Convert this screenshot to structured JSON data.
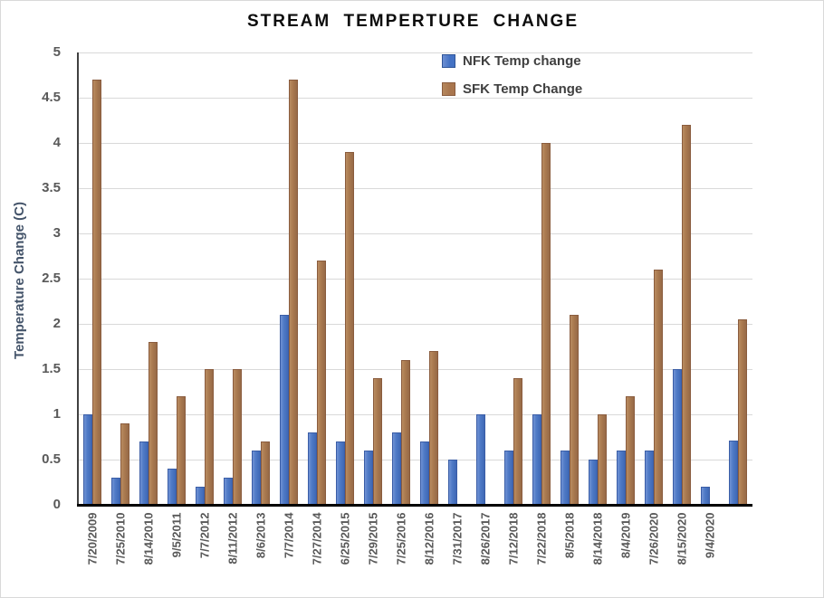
{
  "chart_data": {
    "type": "bar",
    "title": "STREAM TEMPERTURE CHANGE",
    "xlabel": "",
    "ylabel": "Temperature Change  (C)",
    "ylim": [
      0,
      5
    ],
    "grid": true,
    "legend_position": "inside-top-right",
    "yticks": [
      "0",
      "0.5",
      "1",
      "1.5",
      "2",
      "2.5",
      "3",
      "3.5",
      "4",
      "4.5",
      "5"
    ],
    "categories": [
      "7/20/2009",
      "7/25/2010",
      "8/14/2010",
      "9/5/2011",
      "7/7/2012",
      "8/11/2012",
      "8/6/2013",
      "7/7/2014",
      "7/27/2014",
      "6/25/2015",
      "7/29/2015",
      "7/25/2016",
      "8/12/2016",
      "7/31/2017",
      "8/26/2017",
      "7/12/2018",
      "7/22/2018",
      "8/5/2018",
      "8/14/2018",
      "8/4/2019",
      "7/26/2020",
      "8/15/2020",
      "9/4/2020",
      ""
    ],
    "series": [
      {
        "name": "NFK Temp change",
        "color": "#4472c4",
        "values": [
          1.0,
          0.3,
          0.7,
          0.4,
          0.2,
          0.3,
          0.6,
          2.1,
          0.8,
          0.7,
          0.6,
          0.8,
          0.7,
          0.5,
          1.0,
          0.6,
          1.0,
          0.6,
          0.5,
          0.6,
          0.6,
          1.5,
          0.2,
          0.71
        ]
      },
      {
        "name": "SFK Temp Change",
        "color": "#a9764e",
        "values": [
          4.7,
          0.9,
          1.8,
          1.2,
          1.5,
          1.5,
          0.7,
          4.7,
          2.7,
          3.9,
          1.4,
          1.6,
          1.7,
          null,
          null,
          1.4,
          4.0,
          2.1,
          1.0,
          1.2,
          2.6,
          4.2,
          null,
          2.05
        ]
      }
    ]
  }
}
